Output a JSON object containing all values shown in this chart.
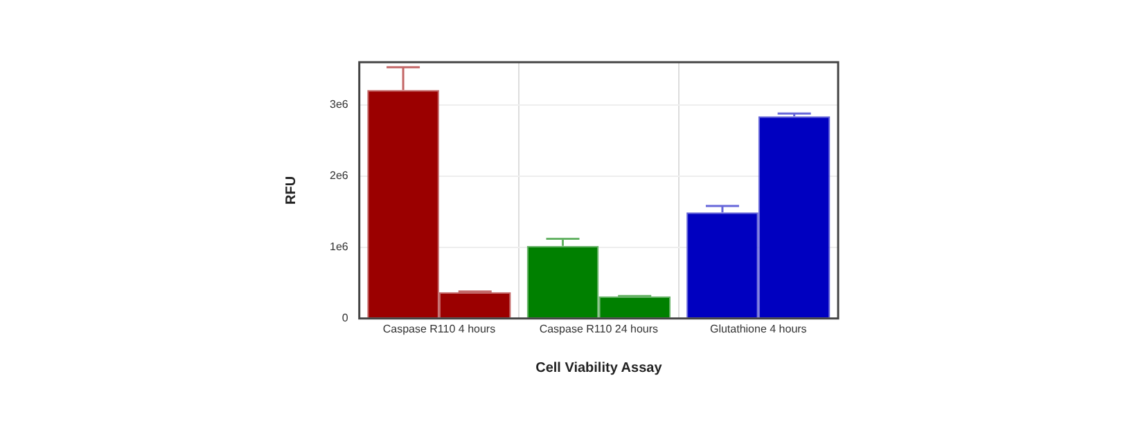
{
  "chart_data": {
    "type": "bar",
    "xlabel": "Cell Viability Assay",
    "ylabel": "RFU",
    "categories": [
      "Caspase R110 4 hours",
      "Caspase R110 24 hours",
      "Glutathione 4 hours"
    ],
    "series": [
      {
        "colors": [
          "#9b0000",
          "#008000",
          "#0000c0"
        ],
        "values": [
          3210000,
          1020000,
          1490000
        ],
        "errors": [
          [
            3210000,
            3530000
          ],
          [
            1020000,
            1120000
          ],
          [
            1490000,
            1580000
          ]
        ]
      },
      {
        "colors": [
          "#9b0000",
          "#008000",
          "#0000c0"
        ],
        "values": [
          370000,
          310000,
          2840000
        ],
        "errors": [
          [
            370000,
            380000
          ],
          [
            310000,
            315000
          ],
          [
            2840000,
            2880000
          ]
        ]
      }
    ],
    "ylim": [
      0,
      3600000
    ],
    "yticks": [
      {
        "value": 0,
        "label": "0"
      },
      {
        "value": 1000000,
        "label": "1e6"
      },
      {
        "value": 2000000,
        "label": "2e6"
      },
      {
        "value": 3000000,
        "label": "3e6"
      }
    ],
    "grid": true
  }
}
